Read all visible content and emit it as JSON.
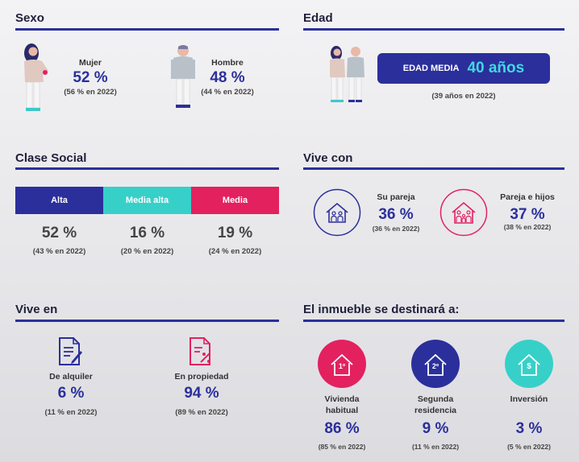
{
  "sexo": {
    "title": "Sexo",
    "mujer": {
      "label": "Mujer",
      "pct": "52 %",
      "prev": "(56 % en 2022)"
    },
    "hombre": {
      "label": "Hombre",
      "pct": "48 %",
      "prev": "(44 % en 2022)"
    }
  },
  "edad": {
    "title": "Edad",
    "box_label": "EDAD MEDIA",
    "box_value": "40 años",
    "prev": "(39 años en 2022)"
  },
  "clase": {
    "title": "Clase Social",
    "bands": [
      {
        "label": "Alta",
        "pct": "52 %",
        "prev": "(43 % en 2022)",
        "color": "#2b2f9b"
      },
      {
        "label": "Media alta",
        "pct": "16 %",
        "prev": "(20 % en 2022)",
        "color": "#37d0c9"
      },
      {
        "label": "Media",
        "pct": "19 %",
        "prev": "(24 % en 2022)",
        "color": "#e3215f"
      }
    ]
  },
  "vive_con": {
    "title": "Vive con",
    "items": [
      {
        "label": "Su pareja",
        "pct": "36 %",
        "prev": "(36 % en 2022)",
        "color": "#2b2f9b"
      },
      {
        "label": "Pareja e hijos",
        "pct": "37 %",
        "prev": "(38 % en 2022)",
        "color": "#e3215f"
      }
    ]
  },
  "vive_en": {
    "title": "Vive en",
    "items": [
      {
        "label": "De alquiler",
        "pct": "6 %",
        "prev": "(11 % en 2022)",
        "color": "#2b2f9b"
      },
      {
        "label": "En propiedad",
        "pct": "94 %",
        "prev": "(89 % en 2022)",
        "color": "#e3215f"
      }
    ]
  },
  "destino": {
    "title": "El inmueble se destinará a:",
    "items": [
      {
        "label1": "Vivienda",
        "label2": "habitual",
        "pct": "86 %",
        "prev": "(85 % en 2022)",
        "icon_text": "1º",
        "color": "#e3215f"
      },
      {
        "label1": "Segunda",
        "label2": "residencia",
        "pct": "9 %",
        "prev": "(11 % en 2022)",
        "icon_text": "2º",
        "color": "#2b2f9b"
      },
      {
        "label1": "Inversión",
        "label2": "",
        "pct": "3 %",
        "prev": "(5 % en 2022)",
        "icon_text": "$",
        "color": "#37d0c9"
      }
    ]
  }
}
